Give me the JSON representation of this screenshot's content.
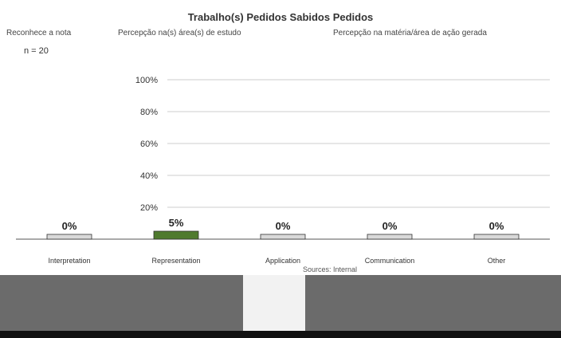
{
  "header": {
    "title": "Trabalho(s) Pedidos Sabidos Pedidos",
    "left_label": "Reconhece a nota",
    "center_label": "Percepção na(s) área(s) de estudo",
    "right_label": "Percepção na matéria/área de ação gerada",
    "n_label": "n = 20"
  },
  "chart_data": {
    "type": "bar",
    "title": "Trabalho(s) Pedidos Sabidos Pedidos",
    "xlabel": "",
    "ylabel": "",
    "ylim": [
      0,
      100
    ],
    "y_ticks": [
      "20%",
      "40%",
      "60%",
      "80%",
      "100%"
    ],
    "categories": [
      "Interpretation",
      "Representation",
      "Application",
      "Communication",
      "Other"
    ],
    "values": [
      0,
      5,
      0,
      0,
      0
    ],
    "value_labels": [
      "0%",
      "5%",
      "0%",
      "0%",
      "0%"
    ],
    "colors": {
      "highlight": "#4f7a2e",
      "base": "#d9d9d9",
      "axis": "#555555",
      "grid": "#cccccc"
    }
  },
  "footer": {
    "note": "Sources: Internal"
  }
}
